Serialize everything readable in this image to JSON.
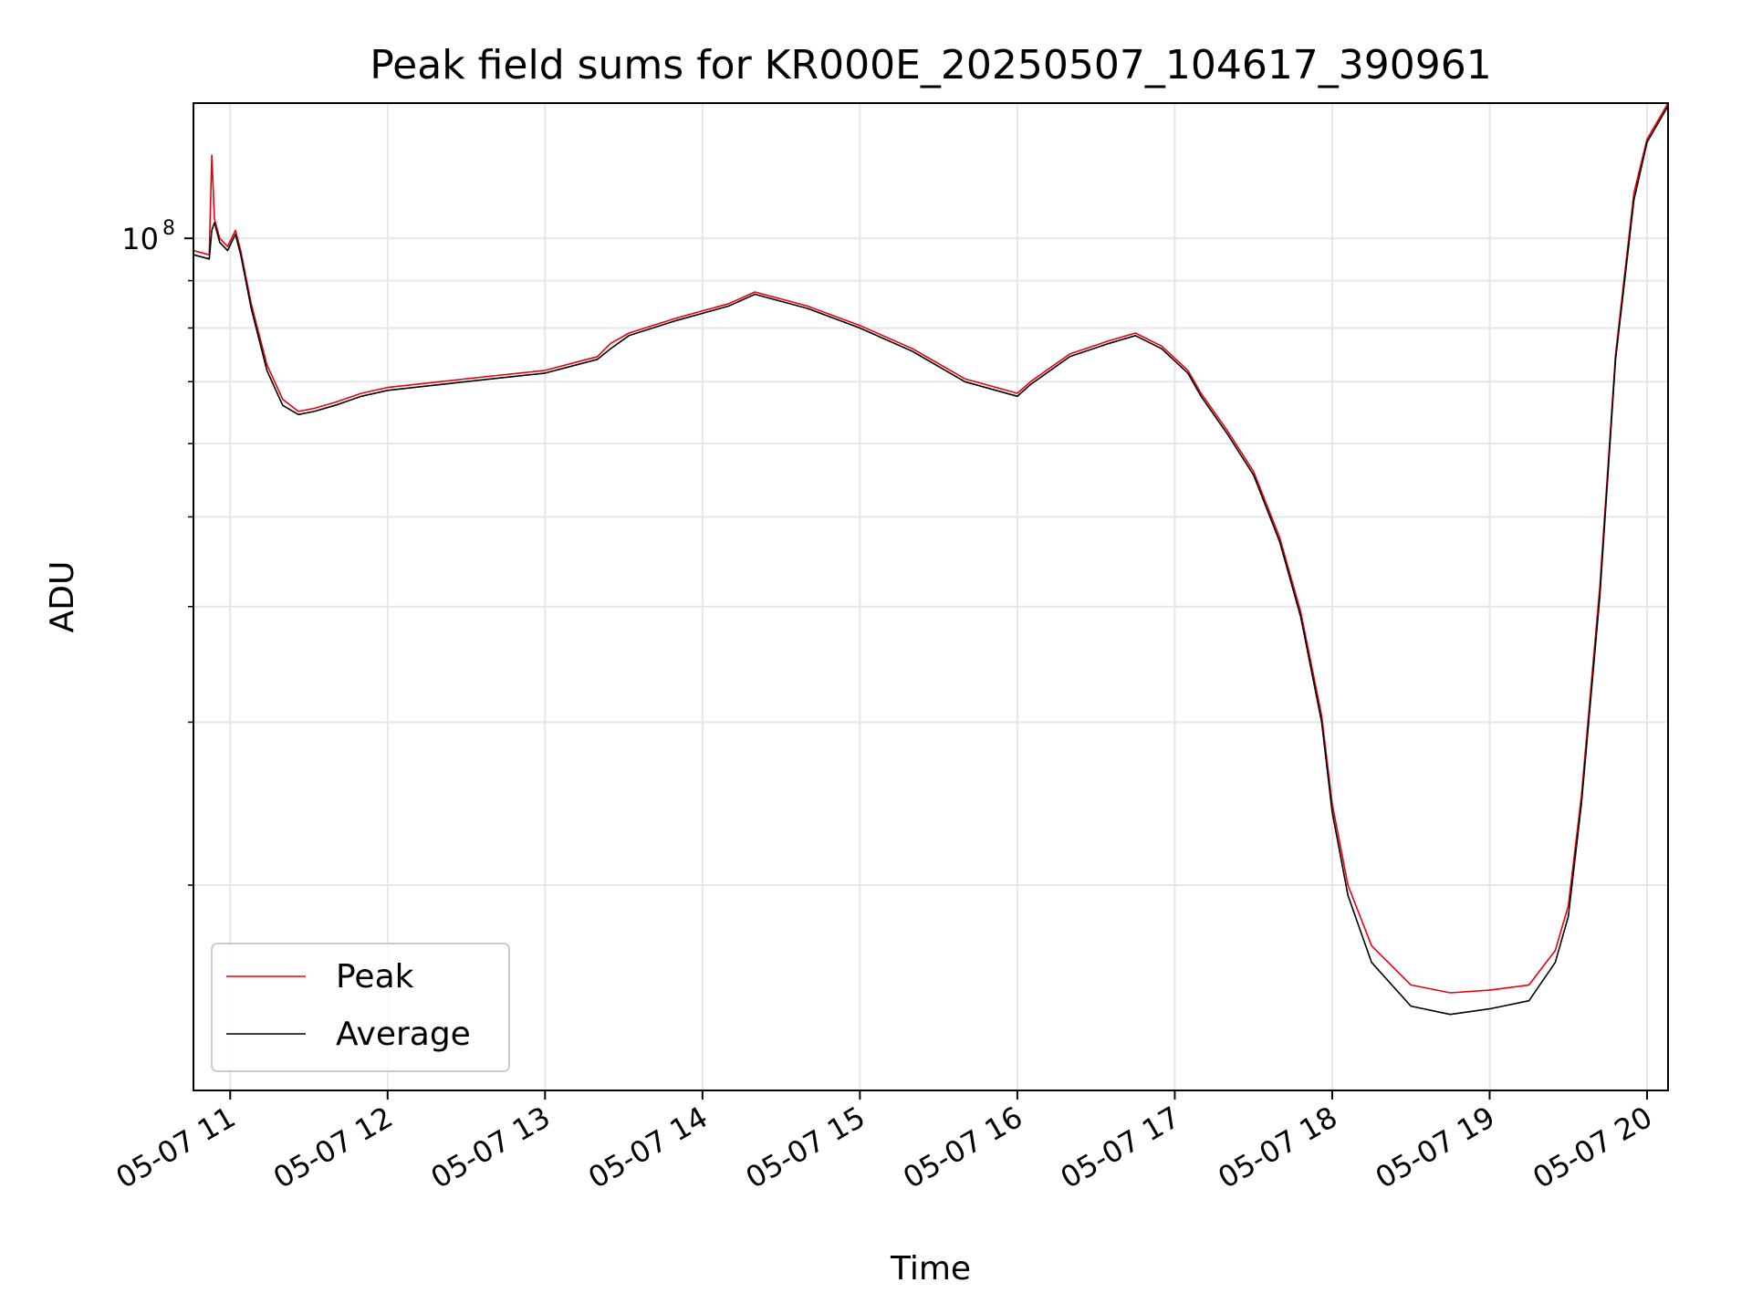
{
  "chart_data": {
    "type": "line",
    "title": "Peak field sums for KR000E_20250507_104617_390961",
    "xlabel": "Time",
    "ylabel": "ADU",
    "x_ticks": [
      "05-07 11",
      "05-07 12",
      "05-07 13",
      "05-07 14",
      "05-07 15",
      "05-07 16",
      "05-07 17",
      "05-07 18",
      "05-07 19",
      "05-07 20"
    ],
    "x_range": [
      "05-07 10:46",
      "05-07 20:08"
    ],
    "yscale": "log",
    "ylim": [
      12000000.0,
      140000000.0
    ],
    "y_major_tick": {
      "value": 100000000.0,
      "label_base": "10",
      "label_exp": "8"
    },
    "y_minor_ticks": [
      20000000.0,
      30000000.0,
      40000000.0,
      50000000.0,
      60000000.0,
      70000000.0,
      80000000.0,
      90000000.0
    ],
    "grid": true,
    "legend": {
      "position": "lower-left",
      "entries": [
        "Peak",
        "Average"
      ]
    },
    "colors": {
      "Peak": "#e8000b",
      "Average": "#000000"
    },
    "series": [
      {
        "name": "Peak",
        "x": [
          "05-07 10:46",
          "05-07 10:52",
          "05-07 10:53",
          "05-07 10:54",
          "05-07 10:56",
          "05-07 10:59",
          "05-07 11:02",
          "05-07 11:04",
          "05-07 11:08",
          "05-07 11:14",
          "05-07 11:20",
          "05-07 11:26",
          "05-07 11:32",
          "05-07 11:40",
          "05-07 11:50",
          "05-07 12:00",
          "05-07 12:20",
          "05-07 12:40",
          "05-07 13:00",
          "05-07 13:20",
          "05-07 13:25",
          "05-07 13:32",
          "05-07 13:50",
          "05-07 14:10",
          "05-07 14:20",
          "05-07 14:40",
          "05-07 15:00",
          "05-07 15:20",
          "05-07 15:40",
          "05-07 16:00",
          "05-07 16:05",
          "05-07 16:20",
          "05-07 16:35",
          "05-07 16:45",
          "05-07 16:55",
          "05-07 17:05",
          "05-07 17:10",
          "05-07 17:20",
          "05-07 17:30",
          "05-07 17:40",
          "05-07 17:48",
          "05-07 17:56",
          "05-07 18:00",
          "05-07 18:06",
          "05-07 18:15",
          "05-07 18:30",
          "05-07 18:45",
          "05-07 19:00",
          "05-07 19:15",
          "05-07 19:25",
          "05-07 19:30",
          "05-07 19:35",
          "05-07 19:42",
          "05-07 19:48",
          "05-07 19:55",
          "05-07 20:00",
          "05-07 20:08"
        ],
        "y": [
          97000000.0,
          96000000.0,
          123000000.0,
          105000000.0,
          100000000.0,
          98000000.0,
          102000000.0,
          97000000.0,
          85000000.0,
          73000000.0,
          67000000.0,
          65000000.0,
          65500000.0,
          66500000.0,
          68000000.0,
          69000000.0,
          70000000.0,
          71000000.0,
          72000000.0,
          74500000.0,
          77000000.0,
          79000000.0,
          82000000.0,
          85000000.0,
          87500000.0,
          84500000.0,
          80500000.0,
          76000000.0,
          70500000.0,
          68000000.0,
          70000000.0,
          75000000.0,
          77500000.0,
          79000000.0,
          76500000.0,
          72000000.0,
          68000000.0,
          62000000.0,
          56000000.0,
          47500000.0,
          39500000.0,
          30500000.0,
          24500000.0,
          20000000.0,
          17200000.0,
          15600000.0,
          15300000.0,
          15400000.0,
          15600000.0,
          17000000.0,
          19000000.0,
          25000000.0,
          42000000.0,
          75000000.0,
          112000000.0,
          128000000.0,
          140000000.0
        ]
      },
      {
        "name": "Average",
        "x": [
          "05-07 10:46",
          "05-07 10:52",
          "05-07 10:53",
          "05-07 10:54",
          "05-07 10:56",
          "05-07 10:59",
          "05-07 11:02",
          "05-07 11:04",
          "05-07 11:08",
          "05-07 11:14",
          "05-07 11:20",
          "05-07 11:26",
          "05-07 11:32",
          "05-07 11:40",
          "05-07 11:50",
          "05-07 12:00",
          "05-07 12:20",
          "05-07 12:40",
          "05-07 13:00",
          "05-07 13:20",
          "05-07 13:25",
          "05-07 13:32",
          "05-07 13:50",
          "05-07 14:10",
          "05-07 14:20",
          "05-07 14:40",
          "05-07 15:00",
          "05-07 15:20",
          "05-07 15:40",
          "05-07 16:00",
          "05-07 16:05",
          "05-07 16:20",
          "05-07 16:35",
          "05-07 16:45",
          "05-07 16:55",
          "05-07 17:05",
          "05-07 17:10",
          "05-07 17:20",
          "05-07 17:30",
          "05-07 17:40",
          "05-07 17:48",
          "05-07 17:56",
          "05-07 18:00",
          "05-07 18:06",
          "05-07 18:15",
          "05-07 18:30",
          "05-07 18:45",
          "05-07 19:00",
          "05-07 19:15",
          "05-07 19:25",
          "05-07 19:30",
          "05-07 19:35",
          "05-07 19:42",
          "05-07 19:48",
          "05-07 19:55",
          "05-07 20:00",
          "05-07 20:08"
        ],
        "y": [
          96000000.0,
          95000000.0,
          102000000.0,
          104000000.0,
          99000000.0,
          97000000.0,
          101000000.0,
          96000000.0,
          84000000.0,
          72000000.0,
          66000000.0,
          64500000.0,
          65000000.0,
          66000000.0,
          67500000.0,
          68500000.0,
          69500000.0,
          70500000.0,
          71500000.0,
          74000000.0,
          76000000.0,
          78500000.0,
          81500000.0,
          84500000.0,
          87000000.0,
          84000000.0,
          80000000.0,
          75500000.0,
          70000000.0,
          67500000.0,
          69500000.0,
          74500000.0,
          77000000.0,
          78500000.0,
          76000000.0,
          71500000.0,
          67500000.0,
          61500000.0,
          55500000.0,
          47000000.0,
          39000000.0,
          30000000.0,
          24000000.0,
          19500000.0,
          16500000.0,
          14800000.0,
          14500000.0,
          14700000.0,
          15000000.0,
          16500000.0,
          18500000.0,
          24500000.0,
          41000000.0,
          74000000.0,
          110000000.0,
          127000000.0,
          139000000.0
        ]
      }
    ]
  }
}
